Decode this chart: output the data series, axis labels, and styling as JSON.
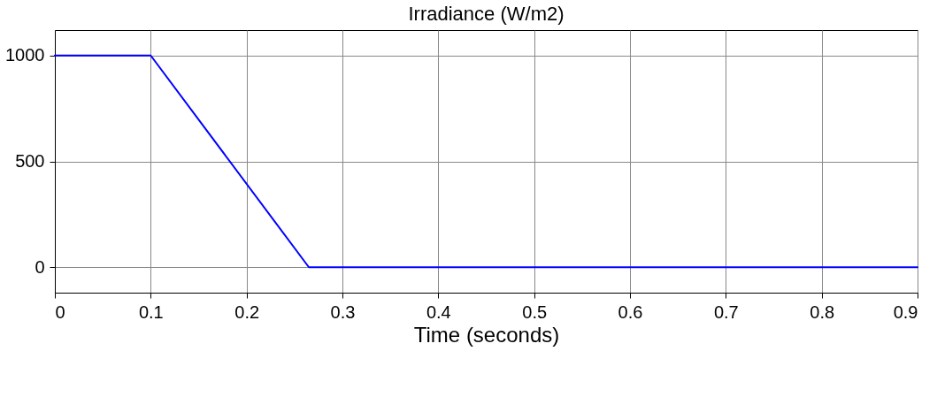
{
  "chart_data": {
    "type": "line",
    "title": "Irradiance (W/m2)",
    "xlabel": "Time (seconds)",
    "x": [
      0,
      0.1,
      0.265,
      0.9
    ],
    "series": [
      {
        "color": "#0000ff",
        "values": [
          1000,
          1000,
          0,
          0
        ]
      }
    ],
    "xlim": [
      0,
      0.9
    ],
    "xticks": [
      0,
      0.1,
      0.2,
      0.3,
      0.4,
      0.5,
      0.6,
      0.7,
      0.8,
      0.9
    ],
    "ylim": [
      -120,
      1120
    ],
    "yticks": [
      0,
      500,
      1000
    ],
    "grid": true
  }
}
